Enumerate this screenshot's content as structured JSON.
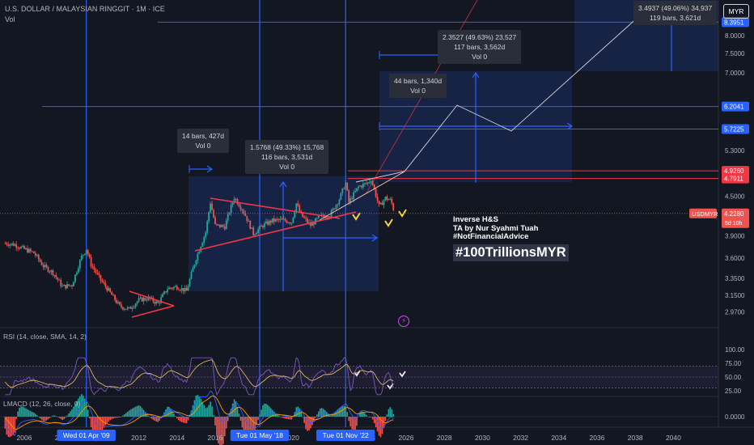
{
  "header": {
    "symbol_title": "U.S. DOLLAR / MALAYSIAN RINGGIT · 1M · ICE",
    "volume_label": "Vol"
  },
  "currency_button": "MYR",
  "colors": {
    "background": "#131722",
    "up": "#26a69a",
    "down": "#ef5350",
    "blue_line": "#2962ff",
    "red_line": "#f23645",
    "rsi": "#7e57c2",
    "rsi_ma": "#d4b85e",
    "macd_line": "#2962ff",
    "signal_line": "#ff9800"
  },
  "chart_data": [
    {
      "type": "candlestick",
      "title": "U.S. DOLLAR / MALAYSIAN RINGGIT · 1M · ICE",
      "scale": "log",
      "ylim": [
        2.9,
        9.4
      ],
      "xlim": [
        2004.8,
        2042
      ],
      "x_ticks": [
        "2006",
        "2008",
        "2010",
        "2012",
        "2014",
        "2016",
        "2018",
        "2020",
        "2022",
        "2024",
        "2026",
        "2028",
        "2030",
        "2032",
        "2034",
        "2036",
        "2038",
        "2040"
      ],
      "y_ticks": [
        "2.9700",
        "3.1500",
        "3.3500",
        "3.6000",
        "3.9000",
        "4.2000",
        "4.5000",
        "5.3000",
        "5.7225",
        "6.2041",
        "7.0000",
        "7.5000",
        "8.0000",
        "8.3951"
      ],
      "last_price": {
        "symbol": "USDMYR",
        "value": "4.2280",
        "countdown": "5d 10h"
      },
      "price_levels": [
        {
          "value": "8.3951",
          "color": "blue"
        },
        {
          "value": "6.2041",
          "color": "blue"
        },
        {
          "value": "5.7225",
          "color": "blue"
        },
        {
          "value": "4.9260",
          "color": "red"
        },
        {
          "value": "4.7911",
          "color": "red"
        }
      ],
      "approx_monthly_closes": [
        [
          2005.0,
          3.8
        ],
        [
          2005.5,
          3.78
        ],
        [
          2006.0,
          3.72
        ],
        [
          2006.5,
          3.67
        ],
        [
          2007.0,
          3.5
        ],
        [
          2007.5,
          3.42
        ],
        [
          2008.0,
          3.25
        ],
        [
          2008.5,
          3.27
        ],
        [
          2009.0,
          3.62
        ],
        [
          2009.25,
          3.72
        ],
        [
          2009.5,
          3.52
        ],
        [
          2010.0,
          3.33
        ],
        [
          2010.5,
          3.18
        ],
        [
          2011.0,
          3.03
        ],
        [
          2011.5,
          3.0
        ],
        [
          2012.0,
          3.1
        ],
        [
          2012.5,
          3.12
        ],
        [
          2013.0,
          3.06
        ],
        [
          2013.5,
          3.23
        ],
        [
          2014.0,
          3.25
        ],
        [
          2014.5,
          3.2
        ],
        [
          2015.0,
          3.6
        ],
        [
          2015.5,
          3.95
        ],
        [
          2015.75,
          4.4
        ],
        [
          2016.0,
          4.05
        ],
        [
          2016.5,
          4.03
        ],
        [
          2017.0,
          4.48
        ],
        [
          2017.5,
          4.25
        ],
        [
          2018.0,
          3.93
        ],
        [
          2018.5,
          4.05
        ],
        [
          2019.0,
          4.12
        ],
        [
          2019.5,
          4.13
        ],
        [
          2020.0,
          4.1
        ],
        [
          2020.25,
          4.38
        ],
        [
          2020.5,
          4.2
        ],
        [
          2021.0,
          4.05
        ],
        [
          2021.5,
          4.18
        ],
        [
          2022.0,
          4.2
        ],
        [
          2022.5,
          4.45
        ],
        [
          2022.83,
          4.72
        ],
        [
          2023.0,
          4.4
        ],
        [
          2023.5,
          4.65
        ],
        [
          2024.0,
          4.72
        ],
        [
          2024.17,
          4.78
        ],
        [
          2024.6,
          4.32
        ],
        [
          2024.9,
          4.47
        ],
        [
          2025.2,
          4.43
        ],
        [
          2025.4,
          4.23
        ]
      ]
    },
    {
      "type": "line",
      "title": "RSI (14, close, SMA, 14, 2)",
      "ylim": [
        0,
        100
      ],
      "y_ticks": [
        "100.00",
        "75.00",
        "50.00",
        "25.00"
      ],
      "bands": [
        70,
        30
      ]
    },
    {
      "type": "bar",
      "title": "LMACD (12, 26, close, 9)",
      "y_ticks": [
        "0.0000"
      ]
    }
  ],
  "vertical_markers": [
    {
      "date": "Wed 01 Apr '09"
    },
    {
      "date": "Tue 01 May '18"
    },
    {
      "date": "Tue 01 Nov '22"
    }
  ],
  "measure_boxes": [
    {
      "line1": "14 bars, 427d",
      "line2": "Vol 0"
    },
    {
      "line1": "1.5768 (49.33%) 15,768",
      "line2": "116 bars, 3,531d",
      "line3": "Vol 0"
    },
    {
      "line1": "44 bars, 1,340d",
      "line2": "Vol 0"
    },
    {
      "line1": "2.3527 (49.63%) 23,527",
      "line2": "117 bars, 3,562d",
      "line3": "Vol 0"
    },
    {
      "line1": "3.4937 (49.06%) 34,937",
      "line2": "119 bars, 3,621d"
    }
  ],
  "annotations": {
    "pattern_title": "Inverse H&S",
    "author": "TA by Nur Syahmi Tuah",
    "disclaimer": "#NotFinancialAdvice",
    "hashtag": "#100TrillionsMYR"
  }
}
